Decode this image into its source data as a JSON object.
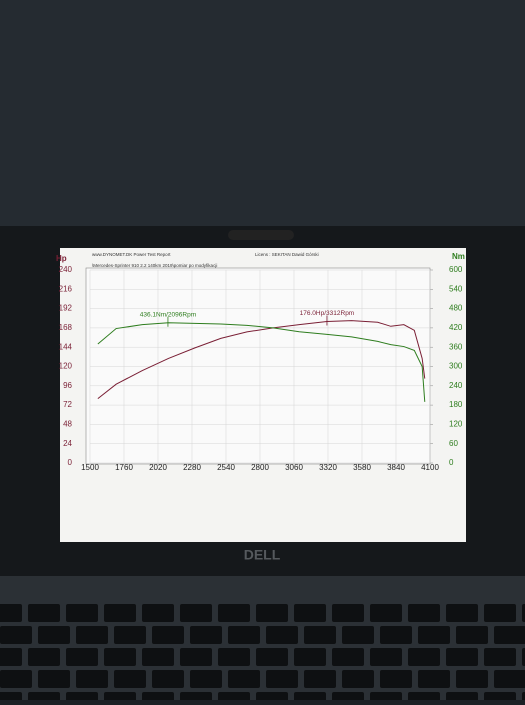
{
  "chart_data": {
    "type": "line",
    "header_left": "www.DYNOMET.DK  Power Test Report",
    "header_right": "Licens :  SEKITAN Dawid Górski",
    "subtitle": "\\Mercedes-Sprinter 910 2.2 140km 2019\\pomiar po modyfikacji",
    "y_label": "Hp",
    "y2_label": "Nm",
    "x": [
      1560,
      1700,
      1900,
      2100,
      2300,
      2500,
      2700,
      2900,
      3100,
      3312,
      3500,
      3700,
      3800,
      3900,
      3980,
      4040,
      4060
    ],
    "series": [
      {
        "name": "Hp",
        "color": "#7a1f35",
        "values": [
          80,
          98,
          115,
          130,
          143,
          155,
          163,
          168,
          172,
          176,
          177,
          175,
          170,
          172,
          165,
          130,
          105
        ]
      },
      {
        "name": "Nm",
        "color": "#2e7d1e",
        "axis": "y2",
        "values": [
          370,
          418,
          430,
          436,
          434,
          432,
          428,
          420,
          408,
          400,
          392,
          378,
          368,
          362,
          350,
          300,
          190
        ]
      }
    ],
    "xlim": [
      1500,
      4100
    ],
    "xticks": [
      1500,
      1760,
      2020,
      2280,
      2540,
      2800,
      3060,
      3320,
      3580,
      3840,
      4100
    ],
    "ylim": [
      0,
      240
    ],
    "yticks": [
      0,
      24,
      48,
      72,
      96,
      120,
      144,
      168,
      192,
      216,
      240
    ],
    "y2lim": [
      0,
      600
    ],
    "y2ticks": [
      0,
      60,
      120,
      180,
      240,
      300,
      360,
      420,
      480,
      540,
      600
    ],
    "grid": true,
    "annotations": [
      {
        "text": "436.1Nm/2096Rpm",
        "x": 2096,
        "y": 436.1,
        "axis": "y2"
      },
      {
        "text": "176.0Hp/3312Rpm",
        "x": 3312,
        "y": 176,
        "axis": "y"
      }
    ]
  },
  "laptop": {
    "logo": "DELL"
  }
}
